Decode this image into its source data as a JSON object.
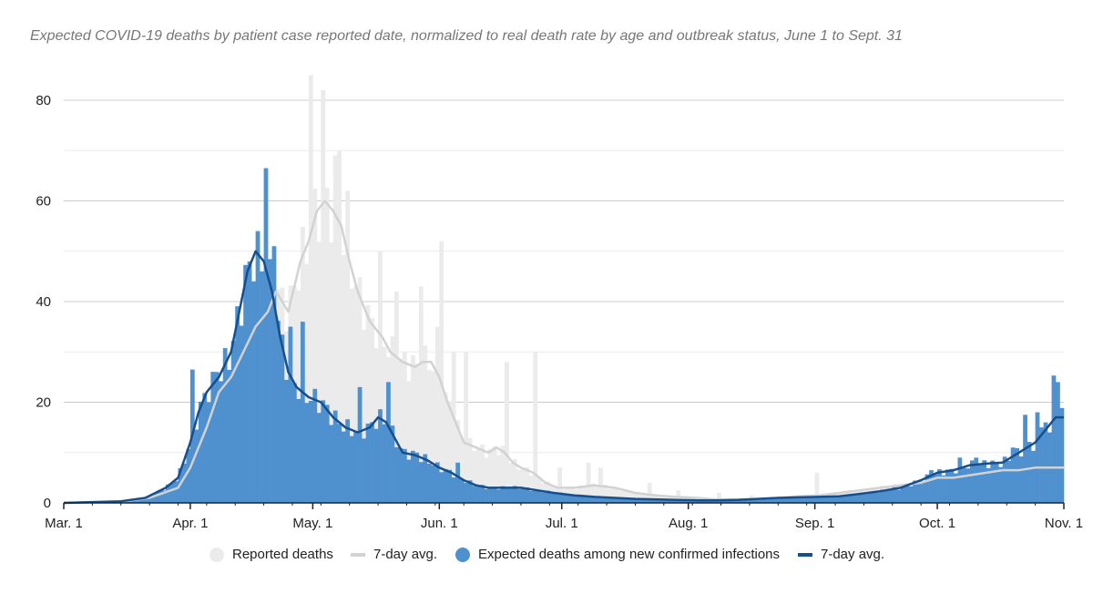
{
  "title": "Expected COVID-19 deaths by patient case reported date, normalized to real death rate by age and outbreak status, June 1 to Sept. 31",
  "colors": {
    "reported_bar": "#ebebeb",
    "reported_avg": "#d2d2d2",
    "expected_bar": "#4f90cf",
    "expected_avg": "#164f8c",
    "grid": "#cccccc",
    "axis": "#222222"
  },
  "legend": {
    "reported": "Reported deaths",
    "reported_avg": "7-day avg.",
    "expected": "Expected deaths among new confirmed infections",
    "expected_avg": "7-day avg."
  },
  "chart_data": {
    "type": "bar",
    "x_axis": {
      "type": "date",
      "start": "Mar. 1",
      "end": "Oct. 31",
      "tick_labels": [
        "Mar. 1",
        "Apr. 1",
        "May. 1",
        "Jun. 1",
        "Jul. 1",
        "Aug. 1",
        "Sep. 1",
        "Oct. 1",
        "Nov. 1"
      ],
      "tick_days": [
        0,
        31,
        61,
        92,
        122,
        153,
        184,
        214,
        245
      ]
    },
    "y_axis": {
      "ylim": [
        0,
        85
      ],
      "ticks": [
        0,
        20,
        40,
        60,
        80
      ],
      "tick_labels": [
        "0",
        "20",
        "40",
        "60",
        "80"
      ],
      "minor_gridlines": [
        10,
        30,
        50,
        70
      ]
    },
    "grid": true,
    "legend_position": "bottom",
    "series": [
      {
        "name": "Reported deaths",
        "kind": "bar",
        "color_key": "reported_bar",
        "keypoints": [
          [
            0,
            0
          ],
          [
            14,
            0.2
          ],
          [
            21,
            1
          ],
          [
            28,
            3
          ],
          [
            31,
            7
          ],
          [
            35,
            15
          ],
          [
            38,
            22
          ],
          [
            41,
            25
          ],
          [
            44,
            30
          ],
          [
            47,
            35
          ],
          [
            50,
            38
          ],
          [
            52,
            42
          ],
          [
            55,
            38
          ],
          [
            58,
            48
          ],
          [
            60,
            52
          ],
          [
            62,
            58
          ],
          [
            64,
            60
          ],
          [
            66,
            58
          ],
          [
            68,
            55
          ],
          [
            70,
            48
          ],
          [
            72,
            42
          ],
          [
            75,
            36
          ],
          [
            78,
            33
          ],
          [
            80,
            30
          ],
          [
            83,
            28
          ],
          [
            86,
            27
          ],
          [
            88,
            28
          ],
          [
            90,
            28
          ],
          [
            92,
            25
          ],
          [
            94,
            20
          ],
          [
            96,
            16
          ],
          [
            98,
            12
          ],
          [
            101,
            11
          ],
          [
            104,
            10
          ],
          [
            106,
            11
          ],
          [
            108,
            10
          ],
          [
            110,
            8
          ],
          [
            112,
            7
          ],
          [
            115,
            6
          ],
          [
            118,
            4
          ],
          [
            121,
            3
          ],
          [
            125,
            3
          ],
          [
            130,
            3.5
          ],
          [
            135,
            3
          ],
          [
            140,
            2
          ],
          [
            145,
            1.5
          ],
          [
            150,
            1.2
          ],
          [
            155,
            1
          ],
          [
            160,
            0.7
          ],
          [
            165,
            0.7
          ],
          [
            170,
            0.8
          ],
          [
            175,
            1
          ],
          [
            180,
            1.3
          ],
          [
            185,
            1.5
          ],
          [
            190,
            2
          ],
          [
            195,
            2.5
          ],
          [
            200,
            3
          ],
          [
            205,
            3.5
          ],
          [
            210,
            4
          ],
          [
            214,
            5
          ],
          [
            218,
            5
          ],
          [
            222,
            5.5
          ],
          [
            226,
            6
          ],
          [
            230,
            6.5
          ],
          [
            234,
            6.5
          ],
          [
            238,
            7
          ],
          [
            242,
            7
          ],
          [
            245,
            7
          ]
        ],
        "spikes": [
          [
            60,
            85
          ],
          [
            63,
            82
          ],
          [
            66,
            69
          ],
          [
            67,
            70
          ],
          [
            69,
            62
          ],
          [
            77,
            50
          ],
          [
            81,
            42
          ],
          [
            87,
            43
          ],
          [
            91,
            35
          ],
          [
            92,
            52
          ],
          [
            95,
            30
          ],
          [
            98,
            30
          ],
          [
            108,
            28
          ],
          [
            115,
            30
          ],
          [
            121,
            7
          ],
          [
            128,
            8
          ],
          [
            131,
            7
          ],
          [
            143,
            4
          ],
          [
            150,
            2.5
          ],
          [
            160,
            2
          ],
          [
            168,
            1.5
          ],
          [
            184,
            6
          ]
        ]
      },
      {
        "name": "7-day avg.",
        "kind": "line",
        "color_key": "reported_avg",
        "keypoints": [
          [
            0,
            0
          ],
          [
            14,
            0.2
          ],
          [
            21,
            1
          ],
          [
            28,
            3
          ],
          [
            31,
            7
          ],
          [
            35,
            15
          ],
          [
            38,
            22
          ],
          [
            41,
            25
          ],
          [
            44,
            30
          ],
          [
            47,
            35
          ],
          [
            50,
            38
          ],
          [
            52,
            42
          ],
          [
            55,
            38
          ],
          [
            58,
            48
          ],
          [
            60,
            52
          ],
          [
            62,
            58
          ],
          [
            64,
            60
          ],
          [
            66,
            58
          ],
          [
            68,
            55
          ],
          [
            70,
            48
          ],
          [
            72,
            42
          ],
          [
            75,
            36
          ],
          [
            78,
            33
          ],
          [
            80,
            30
          ],
          [
            83,
            28
          ],
          [
            86,
            27
          ],
          [
            88,
            28
          ],
          [
            90,
            28
          ],
          [
            92,
            25
          ],
          [
            94,
            20
          ],
          [
            96,
            16
          ],
          [
            98,
            12
          ],
          [
            101,
            11
          ],
          [
            104,
            10
          ],
          [
            106,
            11
          ],
          [
            108,
            10
          ],
          [
            110,
            8
          ],
          [
            112,
            7
          ],
          [
            115,
            6
          ],
          [
            118,
            4
          ],
          [
            121,
            3
          ],
          [
            125,
            3
          ],
          [
            130,
            3.5
          ],
          [
            135,
            3
          ],
          [
            140,
            2
          ],
          [
            145,
            1.5
          ],
          [
            150,
            1.2
          ],
          [
            155,
            1
          ],
          [
            160,
            0.7
          ],
          [
            165,
            0.7
          ],
          [
            170,
            0.8
          ],
          [
            175,
            1
          ],
          [
            180,
            1.3
          ],
          [
            185,
            1.5
          ],
          [
            190,
            2
          ],
          [
            195,
            2.5
          ],
          [
            200,
            3
          ],
          [
            205,
            3.5
          ],
          [
            210,
            4
          ],
          [
            214,
            5
          ],
          [
            218,
            5
          ],
          [
            222,
            5.5
          ],
          [
            226,
            6
          ],
          [
            230,
            6.5
          ],
          [
            234,
            6.5
          ],
          [
            238,
            7
          ],
          [
            242,
            7
          ],
          [
            245,
            7
          ]
        ]
      },
      {
        "name": "Expected deaths among new confirmed infections",
        "kind": "bar",
        "color_key": "expected_bar",
        "keypoints": [
          [
            0,
            0
          ],
          [
            14,
            0.3
          ],
          [
            20,
            1
          ],
          [
            25,
            3
          ],
          [
            28,
            5
          ],
          [
            31,
            12
          ],
          [
            33,
            18
          ],
          [
            35,
            22
          ],
          [
            38,
            25
          ],
          [
            41,
            30
          ],
          [
            43,
            38
          ],
          [
            45,
            46
          ],
          [
            47,
            50
          ],
          [
            49,
            48
          ],
          [
            51,
            42
          ],
          [
            53,
            33
          ],
          [
            55,
            26
          ],
          [
            57,
            23
          ],
          [
            60,
            21
          ],
          [
            63,
            20
          ],
          [
            66,
            17
          ],
          [
            69,
            15
          ],
          [
            72,
            14
          ],
          [
            75,
            15
          ],
          [
            77,
            17
          ],
          [
            79,
            16
          ],
          [
            81,
            13
          ],
          [
            83,
            10
          ],
          [
            86,
            9.5
          ],
          [
            89,
            8.5
          ],
          [
            92,
            7
          ],
          [
            95,
            6
          ],
          [
            98,
            4.5
          ],
          [
            101,
            3.5
          ],
          [
            104,
            3
          ],
          [
            108,
            3
          ],
          [
            112,
            3
          ],
          [
            116,
            2.5
          ],
          [
            120,
            2
          ],
          [
            125,
            1.5
          ],
          [
            130,
            1.2
          ],
          [
            135,
            1
          ],
          [
            140,
            0.8
          ],
          [
            145,
            0.7
          ],
          [
            150,
            0.6
          ],
          [
            155,
            0.5
          ],
          [
            160,
            0.5
          ],
          [
            165,
            0.6
          ],
          [
            170,
            0.8
          ],
          [
            175,
            1
          ],
          [
            180,
            1.1
          ],
          [
            185,
            1.2
          ],
          [
            190,
            1.3
          ],
          [
            195,
            1.8
          ],
          [
            200,
            2.3
          ],
          [
            205,
            3
          ],
          [
            210,
            4.5
          ],
          [
            214,
            6
          ],
          [
            218,
            6.5
          ],
          [
            222,
            7.5
          ],
          [
            226,
            7.8
          ],
          [
            230,
            8
          ],
          [
            234,
            10
          ],
          [
            238,
            12
          ],
          [
            241,
            15
          ],
          [
            243,
            17
          ],
          [
            245,
            17
          ]
        ],
        "spikes": [
          [
            31,
            26.5
          ],
          [
            37,
            26
          ],
          [
            47,
            54
          ],
          [
            49,
            66.5
          ],
          [
            51,
            51
          ],
          [
            55,
            35
          ],
          [
            58,
            36
          ],
          [
            72,
            23
          ],
          [
            79,
            24
          ],
          [
            86,
            10
          ],
          [
            96,
            8
          ],
          [
            212,
            6.5
          ],
          [
            219,
            9
          ],
          [
            223,
            9
          ],
          [
            232,
            11
          ],
          [
            235,
            17.5
          ],
          [
            238,
            18
          ],
          [
            239,
            15
          ],
          [
            240,
            16
          ],
          [
            241,
            14
          ],
          [
            242,
            25.3
          ],
          [
            243,
            24
          ]
        ]
      },
      {
        "name": "7-day avg.",
        "kind": "line",
        "color_key": "expected_avg",
        "keypoints": [
          [
            0,
            0
          ],
          [
            14,
            0.3
          ],
          [
            20,
            1
          ],
          [
            25,
            3
          ],
          [
            28,
            5
          ],
          [
            31,
            12
          ],
          [
            33,
            18
          ],
          [
            35,
            22
          ],
          [
            38,
            25
          ],
          [
            41,
            30
          ],
          [
            43,
            38
          ],
          [
            45,
            46
          ],
          [
            47,
            50
          ],
          [
            49,
            48
          ],
          [
            51,
            42
          ],
          [
            53,
            33
          ],
          [
            55,
            26
          ],
          [
            57,
            23
          ],
          [
            60,
            21
          ],
          [
            63,
            20
          ],
          [
            66,
            17
          ],
          [
            69,
            15
          ],
          [
            72,
            14
          ],
          [
            75,
            15
          ],
          [
            77,
            17
          ],
          [
            79,
            16
          ],
          [
            81,
            13
          ],
          [
            83,
            10
          ],
          [
            86,
            9.5
          ],
          [
            89,
            8.5
          ],
          [
            92,
            7
          ],
          [
            95,
            6
          ],
          [
            98,
            4.5
          ],
          [
            101,
            3.5
          ],
          [
            104,
            3
          ],
          [
            108,
            3
          ],
          [
            112,
            3
          ],
          [
            116,
            2.5
          ],
          [
            120,
            2
          ],
          [
            125,
            1.5
          ],
          [
            130,
            1.2
          ],
          [
            135,
            1
          ],
          [
            140,
            0.8
          ],
          [
            145,
            0.7
          ],
          [
            150,
            0.6
          ],
          [
            155,
            0.5
          ],
          [
            160,
            0.5
          ],
          [
            165,
            0.6
          ],
          [
            170,
            0.8
          ],
          [
            175,
            1
          ],
          [
            180,
            1.1
          ],
          [
            185,
            1.2
          ],
          [
            190,
            1.3
          ],
          [
            195,
            1.8
          ],
          [
            200,
            2.3
          ],
          [
            205,
            3
          ],
          [
            210,
            4.5
          ],
          [
            214,
            6
          ],
          [
            218,
            6.5
          ],
          [
            222,
            7.5
          ],
          [
            226,
            7.8
          ],
          [
            230,
            8
          ],
          [
            234,
            10
          ],
          [
            238,
            12
          ],
          [
            241,
            15
          ],
          [
            243,
            17
          ],
          [
            245,
            17
          ]
        ]
      }
    ]
  }
}
